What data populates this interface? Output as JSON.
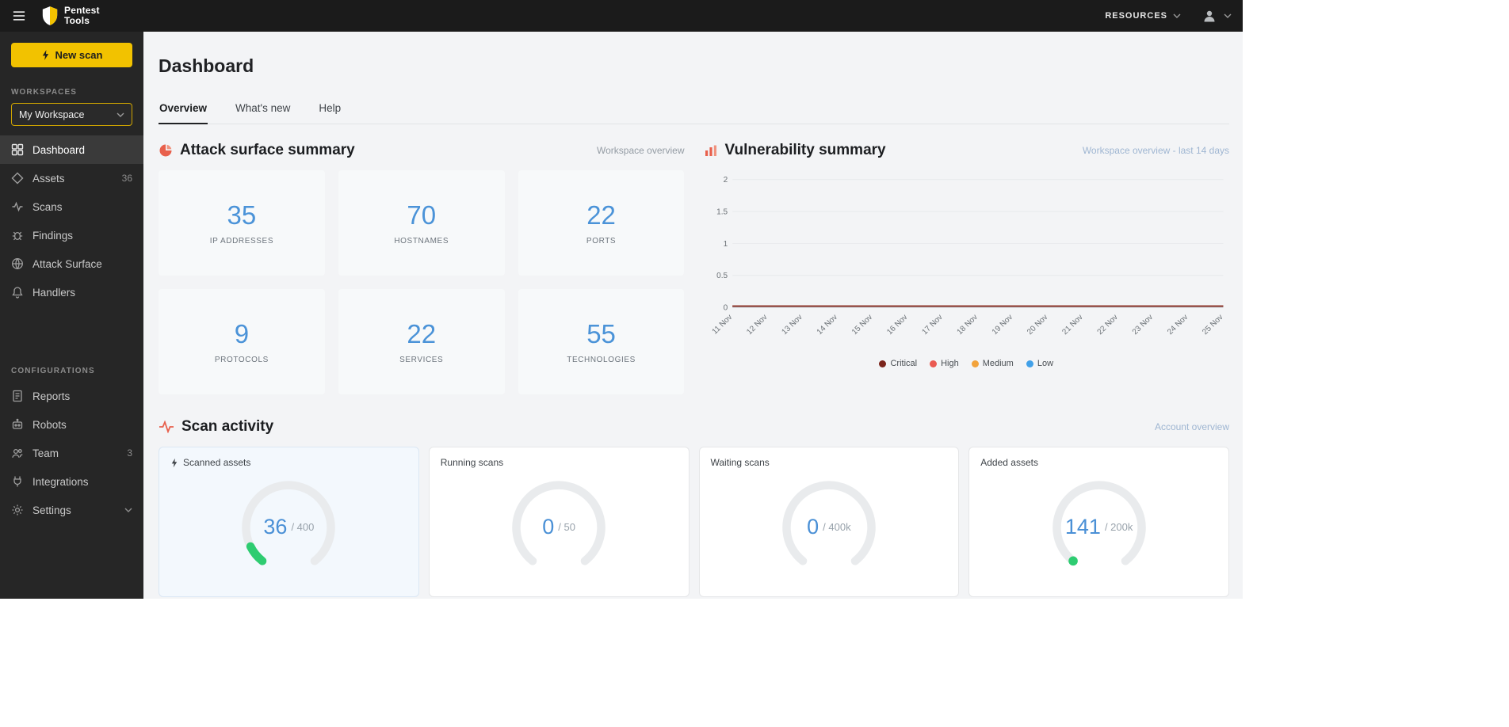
{
  "topbar": {
    "brand_top": "Pentest",
    "brand_bottom": "Tools",
    "resources_label": "RESOURCES"
  },
  "sidebar": {
    "new_scan": "New scan",
    "workspaces_heading": "WORKSPACES",
    "workspace_name": "My Workspace",
    "items": [
      {
        "label": "Dashboard"
      },
      {
        "label": "Assets",
        "badge": "36"
      },
      {
        "label": "Scans"
      },
      {
        "label": "Findings"
      },
      {
        "label": "Attack Surface"
      },
      {
        "label": "Handlers"
      }
    ],
    "configurations_heading": "CONFIGURATIONS",
    "config_items": [
      {
        "label": "Reports"
      },
      {
        "label": "Robots"
      },
      {
        "label": "Team",
        "badge": "3"
      },
      {
        "label": "Integrations"
      },
      {
        "label": "Settings"
      }
    ]
  },
  "page": {
    "title": "Dashboard",
    "tabs": [
      {
        "label": "Overview"
      },
      {
        "label": "What's new"
      },
      {
        "label": "Help"
      }
    ]
  },
  "attack_surface": {
    "title": "Attack surface summary",
    "overview_link": "Workspace overview",
    "stats": [
      {
        "value": "35",
        "label": "IP ADDRESSES"
      },
      {
        "value": "70",
        "label": "HOSTNAMES"
      },
      {
        "value": "22",
        "label": "PORTS"
      },
      {
        "value": "9",
        "label": "PROTOCOLS"
      },
      {
        "value": "22",
        "label": "SERVICES"
      },
      {
        "value": "55",
        "label": "TECHNOLOGIES"
      }
    ]
  },
  "vulnerability": {
    "title": "Vulnerability summary",
    "overview_link": "Workspace overview - last 14 days",
    "chart_data": {
      "type": "line",
      "x": [
        "11 Nov",
        "12 Nov",
        "13 Nov",
        "14 Nov",
        "15 Nov",
        "16 Nov",
        "17 Nov",
        "18 Nov",
        "19 Nov",
        "20 Nov",
        "21 Nov",
        "22 Nov",
        "23 Nov",
        "24 Nov",
        "25 Nov"
      ],
      "yticks": [
        0,
        0.5,
        1,
        1.5,
        2
      ],
      "ylim": [
        0,
        2
      ],
      "grid": true,
      "legend_position": "bottom",
      "series": [
        {
          "name": "Critical",
          "color": "#7b241c",
          "values": [
            0,
            0,
            0,
            0,
            0,
            0,
            0,
            0,
            0,
            0,
            0,
            0,
            0,
            0,
            0
          ]
        },
        {
          "name": "High",
          "color": "#ea5a52",
          "values": [
            0,
            0,
            0,
            0,
            0,
            0,
            0,
            0,
            0,
            0,
            0,
            0,
            0,
            0,
            0
          ]
        },
        {
          "name": "Medium",
          "color": "#f2a33c",
          "values": [
            0,
            0,
            0,
            0,
            0,
            0,
            0,
            0,
            0,
            0,
            0,
            0,
            0,
            0,
            0
          ]
        },
        {
          "name": "Low",
          "color": "#41a0e8",
          "values": [
            0,
            0,
            0,
            0,
            0,
            0,
            0,
            0,
            0,
            0,
            0,
            0,
            0,
            0,
            0
          ]
        }
      ]
    }
  },
  "scan_activity": {
    "title": "Scan activity",
    "overview_link": "Account overview",
    "cards": [
      {
        "label": "Scanned assets",
        "value": "36",
        "max_display": "/ 400",
        "value_num": 36,
        "max_num": 400
      },
      {
        "label": "Running scans",
        "value": "0",
        "max_display": "/ 50",
        "value_num": 0,
        "max_num": 50
      },
      {
        "label": "Waiting scans",
        "value": "0",
        "max_display": "/ 400k",
        "value_num": 0,
        "max_num": 400000
      },
      {
        "label": "Added assets",
        "value": "141",
        "max_display": "/ 200k",
        "value_num": 141,
        "max_num": 200000
      }
    ]
  },
  "colors": {
    "accent_yellow": "#f2c200",
    "stat_blue": "#4b93d8",
    "gauge_green": "#2ecc71"
  }
}
